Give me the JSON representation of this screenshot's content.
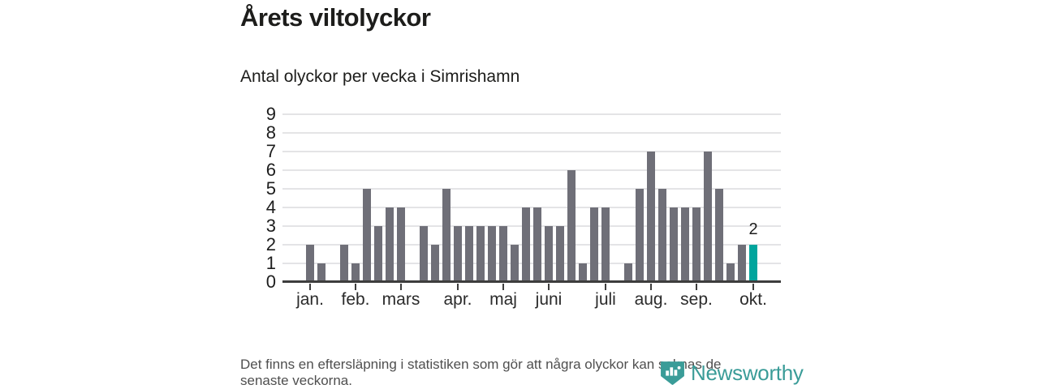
{
  "header": {
    "title": "Årets viltolyckor",
    "subtitle": "Antal olyckor per vecka i Simrishamn"
  },
  "chart_data": {
    "type": "bar",
    "title": "Årets viltolyckor",
    "subtitle": "Antal olyckor per vecka i Simrishamn",
    "ylabel": "",
    "xlabel": "",
    "ylim": [
      0,
      9
    ],
    "y_ticks": [
      0,
      1,
      2,
      3,
      4,
      5,
      6,
      7,
      8,
      9
    ],
    "grid": "horizontal",
    "categories_unit": "vecka",
    "values": [
      2,
      1,
      0,
      2,
      1,
      5,
      3,
      4,
      4,
      0,
      3,
      2,
      5,
      3,
      3,
      3,
      3,
      3,
      2,
      4,
      4,
      3,
      3,
      6,
      1,
      4,
      4,
      0,
      1,
      5,
      7,
      5,
      4,
      4,
      4,
      7,
      5,
      1,
      2,
      2
    ],
    "highlight_index": 39,
    "highlight_value_label": "2",
    "x_tick_labels": [
      "jan.",
      "feb.",
      "mars",
      "apr.",
      "maj",
      "juni",
      "juli",
      "aug.",
      "sep.",
      "okt."
    ],
    "x_tick_week_indices": [
      0,
      4,
      8,
      13,
      17,
      21,
      26,
      30,
      34,
      39
    ],
    "colors": {
      "bar": "#6f6f78",
      "highlight": "#00a59d",
      "gridline": "#e4e4e6",
      "axis": "#3d3d3d"
    },
    "legend": "none"
  },
  "footer": {
    "note_line1": "Det finns en eftersläpning i statistiken som gör att några olyckor kan saknas de",
    "note_line2": "senaste veckorna."
  },
  "logo": {
    "text": "Newsworthy",
    "icon": "newsworthy-pin-barchart-icon",
    "color": "#3a9c98"
  }
}
